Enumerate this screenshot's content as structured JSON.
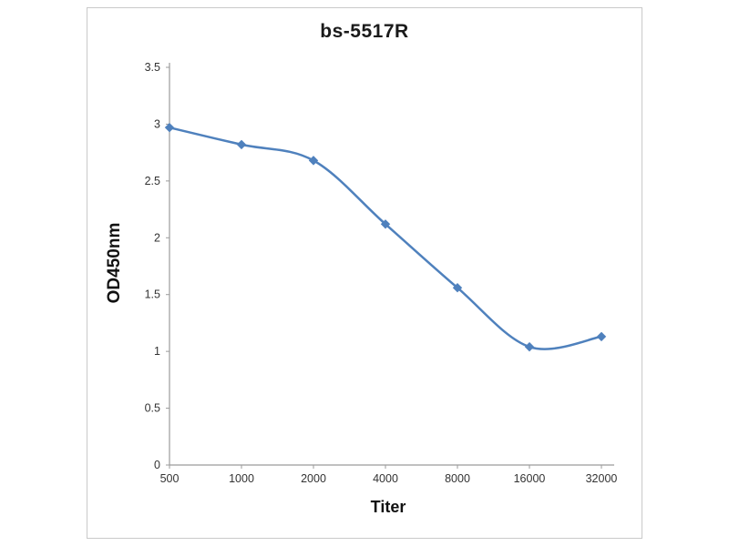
{
  "chart_data": {
    "type": "line",
    "title": "bs-5517R",
    "xlabel": "Titer",
    "ylabel": "OD450nm",
    "categories": [
      "500",
      "1000",
      "2000",
      "4000",
      "8000",
      "16000",
      "32000"
    ],
    "series": [
      {
        "name": "bs-5517R",
        "values": [
          2.97,
          2.82,
          2.68,
          2.12,
          1.56,
          1.04,
          1.13
        ]
      }
    ],
    "ylim": [
      0,
      3.5
    ],
    "ytick_step": 0.5,
    "grid": false,
    "legend": "none",
    "marker": "diamond",
    "colors": {
      "line": "#4f81bd",
      "axis": "#9b9b9b",
      "tick_label": "#333333"
    }
  }
}
